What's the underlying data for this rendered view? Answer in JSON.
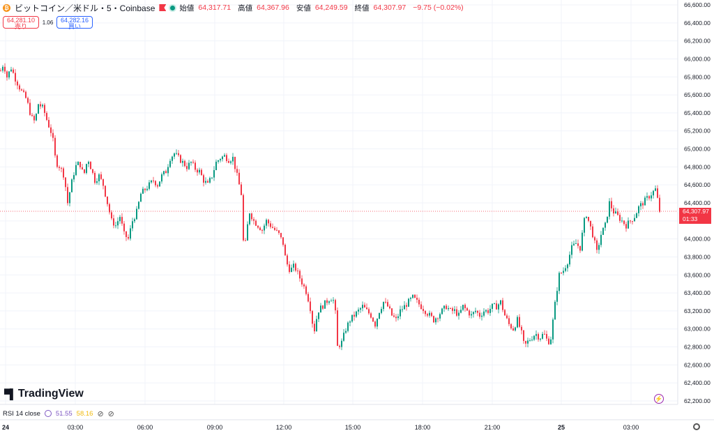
{
  "header": {
    "symbol": "ビットコイン／米ドル・5・Coinbase",
    "open_label": "始値",
    "open": "64,317.71",
    "high_label": "高値",
    "high": "64,367.96",
    "low_label": "安値",
    "low": "64,249.59",
    "close_label": "終値",
    "close": "64,307.97",
    "change": "−9.75 (−0.02%)"
  },
  "trade": {
    "sell_price": "64,281.10",
    "sell_label": "売り",
    "spread": "1.06",
    "buy_price": "64,282.16",
    "buy_label": "買い"
  },
  "last_price": {
    "price": "64,307.97",
    "countdown": "01:33"
  },
  "rsi": {
    "label": "RSI 14 close",
    "value1": "51.55",
    "value2": "58.16"
  },
  "logo_text": "TradingView",
  "colors": {
    "up": "#089981",
    "down": "#f23645",
    "rsi": "#7e57c2",
    "rsi_ma": "#f0b90b"
  },
  "chart_data": {
    "type": "candlestick",
    "y_ticks": [
      "66,600.00",
      "66,400.00",
      "66,200.00",
      "66,000.00",
      "65,800.00",
      "65,600.00",
      "65,400.00",
      "65,200.00",
      "65,000.00",
      "64,800.00",
      "64,600.00",
      "64,400.00",
      "64,200.00",
      "64,000.00",
      "63,800.00",
      "63,600.00",
      "63,400.00",
      "63,200.00",
      "63,000.00",
      "62,800.00",
      "62,600.00",
      "62,400.00",
      "62,200.00"
    ],
    "x_ticks": [
      "24",
      "03:00",
      "06:00",
      "09:00",
      "12:00",
      "15:00",
      "18:00",
      "21:00",
      "25",
      "03:00"
    ],
    "ylim": [
      62200,
      66600
    ],
    "close_path": [
      [
        0,
        65850
      ],
      [
        5,
        65950
      ],
      [
        10,
        65800
      ],
      [
        16,
        65900
      ],
      [
        22,
        65780
      ],
      [
        30,
        65650
      ],
      [
        38,
        65550
      ],
      [
        45,
        65350
      ],
      [
        50,
        65300
      ],
      [
        55,
        65500
      ],
      [
        62,
        65450
      ],
      [
        68,
        65300
      ],
      [
        75,
        65150
      ],
      [
        80,
        64850
      ],
      [
        86,
        64800
      ],
      [
        92,
        64700
      ],
      [
        97,
        64400
      ],
      [
        102,
        64600
      ],
      [
        108,
        64800
      ],
      [
        114,
        64850
      ],
      [
        120,
        64700
      ],
      [
        126,
        64900
      ],
      [
        130,
        64800
      ],
      [
        136,
        64650
      ],
      [
        142,
        64700
      ],
      [
        148,
        64600
      ],
      [
        154,
        64400
      ],
      [
        160,
        64200
      ],
      [
        166,
        64150
      ],
      [
        172,
        64250
      ],
      [
        178,
        64050
      ],
      [
        184,
        64000
      ],
      [
        190,
        64200
      ],
      [
        196,
        64300
      ],
      [
        202,
        64500
      ],
      [
        208,
        64550
      ],
      [
        214,
        64600
      ],
      [
        220,
        64650
      ],
      [
        226,
        64600
      ],
      [
        232,
        64700
      ],
      [
        238,
        64750
      ],
      [
        244,
        64900
      ],
      [
        250,
        64950
      ],
      [
        256,
        64900
      ],
      [
        262,
        64850
      ],
      [
        268,
        64800
      ],
      [
        274,
        64850
      ],
      [
        280,
        64780
      ],
      [
        286,
        64750
      ],
      [
        292,
        64650
      ],
      [
        298,
        64600
      ],
      [
        304,
        64700
      ],
      [
        310,
        64850
      ],
      [
        316,
        64900
      ],
      [
        322,
        64920
      ],
      [
        328,
        64880
      ],
      [
        334,
        64900
      ],
      [
        340,
        64700
      ],
      [
        346,
        64500
      ],
      [
        350,
        63800
      ],
      [
        354,
        64100
      ],
      [
        358,
        64300
      ],
      [
        364,
        64200
      ],
      [
        370,
        64150
      ],
      [
        376,
        64100
      ],
      [
        382,
        64200
      ],
      [
        388,
        64150
      ],
      [
        394,
        64100
      ],
      [
        400,
        64050
      ],
      [
        406,
        63950
      ],
      [
        410,
        63750
      ],
      [
        416,
        63650
      ],
      [
        422,
        63700
      ],
      [
        428,
        63600
      ],
      [
        434,
        63500
      ],
      [
        440,
        63400
      ],
      [
        446,
        63200
      ],
      [
        450,
        62950
      ],
      [
        456,
        63200
      ],
      [
        462,
        63250
      ],
      [
        468,
        63300
      ],
      [
        474,
        63350
      ],
      [
        480,
        63300
      ],
      [
        484,
        62800
      ],
      [
        490,
        62850
      ],
      [
        496,
        63000
      ],
      [
        502,
        63100
      ],
      [
        508,
        63150
      ],
      [
        514,
        63200
      ],
      [
        520,
        63250
      ],
      [
        526,
        63200
      ],
      [
        532,
        63150
      ],
      [
        538,
        63050
      ],
      [
        544,
        63200
      ],
      [
        550,
        63300
      ],
      [
        556,
        63250
      ],
      [
        562,
        63150
      ],
      [
        568,
        63100
      ],
      [
        574,
        63200
      ],
      [
        580,
        63250
      ],
      [
        586,
        63300
      ],
      [
        592,
        63350
      ],
      [
        598,
        63300
      ],
      [
        604,
        63250
      ],
      [
        610,
        63200
      ],
      [
        616,
        63150
      ],
      [
        622,
        63100
      ],
      [
        628,
        63150
      ],
      [
        634,
        63200
      ],
      [
        640,
        63250
      ],
      [
        646,
        63200
      ],
      [
        652,
        63200
      ],
      [
        658,
        63150
      ],
      [
        664,
        63250
      ],
      [
        670,
        63200
      ],
      [
        676,
        63150
      ],
      [
        682,
        63200
      ],
      [
        688,
        63150
      ],
      [
        694,
        63200
      ],
      [
        700,
        63200
      ],
      [
        706,
        63250
      ],
      [
        712,
        63250
      ],
      [
        718,
        63300
      ],
      [
        724,
        63150
      ],
      [
        730,
        63050
      ],
      [
        736,
        63000
      ],
      [
        742,
        63100
      ],
      [
        748,
        62950
      ],
      [
        752,
        62800
      ],
      [
        756,
        62850
      ],
      [
        762,
        62900
      ],
      [
        768,
        62950
      ],
      [
        774,
        62900
      ],
      [
        780,
        62950
      ],
      [
        786,
        62850
      ],
      [
        790,
        62900
      ],
      [
        794,
        63150
      ],
      [
        798,
        63400
      ],
      [
        802,
        63600
      ],
      [
        808,
        63650
      ],
      [
        814,
        63750
      ],
      [
        820,
        63900
      ],
      [
        826,
        63950
      ],
      [
        832,
        63900
      ],
      [
        836,
        64100
      ],
      [
        840,
        64300
      ],
      [
        846,
        64150
      ],
      [
        850,
        64050
      ],
      [
        856,
        63850
      ],
      [
        862,
        64050
      ],
      [
        868,
        64150
      ],
      [
        874,
        64400
      ],
      [
        880,
        64300
      ],
      [
        886,
        64250
      ],
      [
        892,
        64200
      ],
      [
        898,
        64150
      ],
      [
        904,
        64200
      ],
      [
        910,
        64250
      ],
      [
        916,
        64350
      ],
      [
        922,
        64400
      ],
      [
        928,
        64450
      ],
      [
        934,
        64500
      ],
      [
        940,
        64550
      ],
      [
        944,
        64400
      ],
      [
        946,
        64310
      ]
    ]
  }
}
